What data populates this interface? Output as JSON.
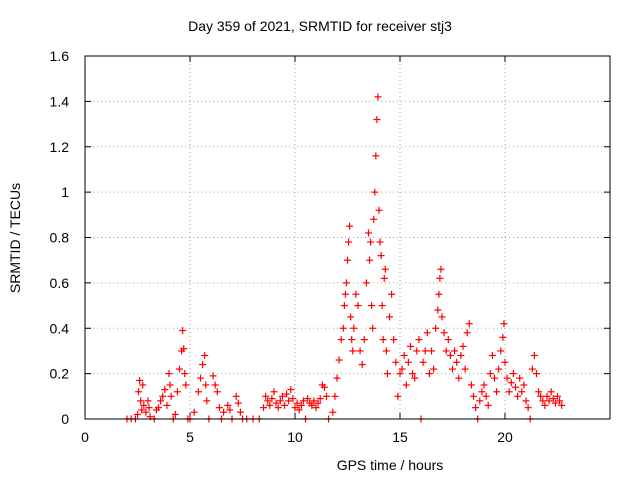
{
  "chart_data": {
    "type": "scatter",
    "title": "Day 359 of 2021, SRMTID for receiver stj3",
    "xlabel": "GPS time / hours",
    "ylabel": "SRMTID / TECUs",
    "xlim": [
      0,
      25
    ],
    "ylim": [
      0,
      1.6
    ],
    "xticks": [
      "0",
      "5",
      "10",
      "15",
      "20"
    ],
    "xtick_values": [
      0,
      5,
      10,
      15,
      20
    ],
    "yticks": [
      "0",
      "0.2",
      "0.4",
      "0.6",
      "0.8",
      "1",
      "1.2",
      "1.4",
      "1.6"
    ],
    "ytick_values": [
      0,
      0.2,
      0.4,
      0.6,
      0.8,
      1.0,
      1.2,
      1.4,
      1.6
    ],
    "grid": true,
    "marker": "+",
    "series_color": "#ff0000",
    "series": [
      {
        "name": "SRMTID",
        "points": [
          [
            2.0,
            0.0
          ],
          [
            2.2,
            0.0
          ],
          [
            2.4,
            0.0
          ],
          [
            2.5,
            0.02
          ],
          [
            2.55,
            0.12
          ],
          [
            2.6,
            0.17
          ],
          [
            2.65,
            0.08
          ],
          [
            2.7,
            0.04
          ],
          [
            2.75,
            0.15
          ],
          [
            2.8,
            0.06
          ],
          [
            2.9,
            0.03
          ],
          [
            3.0,
            0.08
          ],
          [
            3.05,
            0.05
          ],
          [
            3.1,
            0.01
          ],
          [
            3.3,
            0.0
          ],
          [
            3.4,
            0.04
          ],
          [
            3.5,
            0.05
          ],
          [
            3.6,
            0.08
          ],
          [
            3.7,
            0.1
          ],
          [
            3.8,
            0.13
          ],
          [
            3.9,
            0.06
          ],
          [
            4.0,
            0.2
          ],
          [
            4.05,
            0.15
          ],
          [
            4.1,
            0.1
          ],
          [
            4.2,
            0.0
          ],
          [
            4.3,
            0.02
          ],
          [
            4.4,
            0.12
          ],
          [
            4.5,
            0.22
          ],
          [
            4.6,
            0.3
          ],
          [
            4.65,
            0.39
          ],
          [
            4.7,
            0.31
          ],
          [
            4.75,
            0.2
          ],
          [
            4.8,
            0.15
          ],
          [
            4.9,
            0.0
          ],
          [
            5.0,
            0.0
          ],
          [
            5.2,
            0.03
          ],
          [
            5.4,
            0.12
          ],
          [
            5.5,
            0.18
          ],
          [
            5.6,
            0.24
          ],
          [
            5.7,
            0.28
          ],
          [
            5.75,
            0.15
          ],
          [
            5.8,
            0.08
          ],
          [
            5.9,
            0.0
          ],
          [
            6.1,
            0.19
          ],
          [
            6.2,
            0.15
          ],
          [
            6.3,
            0.12
          ],
          [
            6.4,
            0.05
          ],
          [
            6.5,
            0.0
          ],
          [
            6.6,
            0.03
          ],
          [
            6.8,
            0.06
          ],
          [
            6.9,
            0.04
          ],
          [
            7.0,
            0.0
          ],
          [
            7.2,
            0.1
          ],
          [
            7.3,
            0.07
          ],
          [
            7.4,
            0.03
          ],
          [
            7.5,
            0.0
          ],
          [
            7.7,
            0.0
          ],
          [
            8.0,
            0.0
          ],
          [
            8.3,
            0.0
          ],
          [
            8.5,
            0.05
          ],
          [
            8.6,
            0.1
          ],
          [
            8.7,
            0.08
          ],
          [
            8.8,
            0.06
          ],
          [
            8.9,
            0.09
          ],
          [
            9.0,
            0.12
          ],
          [
            9.1,
            0.07
          ],
          [
            9.2,
            0.05
          ],
          [
            9.3,
            0.08
          ],
          [
            9.4,
            0.1
          ],
          [
            9.5,
            0.06
          ],
          [
            9.6,
            0.11
          ],
          [
            9.7,
            0.08
          ],
          [
            9.8,
            0.13
          ],
          [
            9.9,
            0.09
          ],
          [
            10.0,
            0.05
          ],
          [
            10.1,
            0.07
          ],
          [
            10.2,
            0.04
          ],
          [
            10.3,
            0.06
          ],
          [
            10.4,
            0.08
          ],
          [
            10.5,
            0.0
          ],
          [
            10.6,
            0.09
          ],
          [
            10.7,
            0.07
          ],
          [
            10.8,
            0.06
          ],
          [
            10.9,
            0.08
          ],
          [
            11.0,
            0.05
          ],
          [
            11.1,
            0.07
          ],
          [
            11.2,
            0.09
          ],
          [
            11.3,
            0.15
          ],
          [
            11.4,
            0.14
          ],
          [
            11.5,
            0.1
          ],
          [
            11.6,
            0.0
          ],
          [
            11.8,
            0.03
          ],
          [
            11.9,
            0.1
          ],
          [
            12.0,
            0.18
          ],
          [
            12.1,
            0.26
          ],
          [
            12.2,
            0.35
          ],
          [
            12.3,
            0.4
          ],
          [
            12.35,
            0.5
          ],
          [
            12.4,
            0.55
          ],
          [
            12.45,
            0.6
          ],
          [
            12.5,
            0.7
          ],
          [
            12.55,
            0.78
          ],
          [
            12.6,
            0.85
          ],
          [
            12.65,
            0.45
          ],
          [
            12.7,
            0.35
          ],
          [
            12.75,
            0.3
          ],
          [
            12.8,
            0.4
          ],
          [
            12.9,
            0.55
          ],
          [
            13.0,
            0.5
          ],
          [
            13.1,
            0.3
          ],
          [
            13.2,
            0.24
          ],
          [
            13.3,
            0.35
          ],
          [
            13.4,
            0.6
          ],
          [
            13.5,
            0.82
          ],
          [
            13.55,
            0.7
          ],
          [
            13.6,
            0.78
          ],
          [
            13.65,
            0.5
          ],
          [
            13.7,
            0.4
          ],
          [
            13.75,
            0.88
          ],
          [
            13.8,
            1.0
          ],
          [
            13.85,
            1.16
          ],
          [
            13.9,
            1.32
          ],
          [
            13.95,
            1.42
          ],
          [
            14.0,
            0.92
          ],
          [
            14.05,
            0.78
          ],
          [
            14.1,
            0.72
          ],
          [
            14.15,
            0.5
          ],
          [
            14.2,
            0.35
          ],
          [
            14.25,
            0.62
          ],
          [
            14.3,
            0.66
          ],
          [
            14.35,
            0.3
          ],
          [
            14.4,
            0.2
          ],
          [
            14.5,
            0.45
          ],
          [
            14.6,
            0.55
          ],
          [
            14.7,
            0.35
          ],
          [
            14.8,
            0.25
          ],
          [
            14.9,
            0.1
          ],
          [
            15.0,
            0.2
          ],
          [
            15.1,
            0.22
          ],
          [
            15.2,
            0.28
          ],
          [
            15.3,
            0.15
          ],
          [
            15.4,
            0.25
          ],
          [
            15.5,
            0.32
          ],
          [
            15.6,
            0.2
          ],
          [
            15.7,
            0.18
          ],
          [
            15.8,
            0.3
          ],
          [
            15.9,
            0.35
          ],
          [
            16.0,
            0.0
          ],
          [
            16.1,
            0.25
          ],
          [
            16.2,
            0.3
          ],
          [
            16.3,
            0.38
          ],
          [
            16.4,
            0.2
          ],
          [
            16.5,
            0.3
          ],
          [
            16.6,
            0.22
          ],
          [
            16.7,
            0.4
          ],
          [
            16.8,
            0.48
          ],
          [
            16.85,
            0.55
          ],
          [
            16.9,
            0.62
          ],
          [
            16.95,
            0.66
          ],
          [
            17.0,
            0.45
          ],
          [
            17.1,
            0.38
          ],
          [
            17.2,
            0.3
          ],
          [
            17.3,
            0.35
          ],
          [
            17.4,
            0.28
          ],
          [
            17.5,
            0.22
          ],
          [
            17.6,
            0.3
          ],
          [
            17.7,
            0.25
          ],
          [
            17.8,
            0.18
          ],
          [
            17.9,
            0.28
          ],
          [
            18.0,
            0.32
          ],
          [
            18.1,
            0.22
          ],
          [
            18.2,
            0.38
          ],
          [
            18.3,
            0.42
          ],
          [
            18.4,
            0.15
          ],
          [
            18.5,
            0.1
          ],
          [
            18.6,
            0.05
          ],
          [
            18.7,
            0.0
          ],
          [
            18.8,
            0.08
          ],
          [
            18.9,
            0.12
          ],
          [
            19.0,
            0.15
          ],
          [
            19.1,
            0.1
          ],
          [
            19.2,
            0.06
          ],
          [
            19.3,
            0.2
          ],
          [
            19.4,
            0.28
          ],
          [
            19.5,
            0.18
          ],
          [
            19.6,
            0.12
          ],
          [
            19.7,
            0.22
          ],
          [
            19.8,
            0.3
          ],
          [
            19.9,
            0.36
          ],
          [
            19.95,
            0.42
          ],
          [
            20.0,
            0.25
          ],
          [
            20.1,
            0.18
          ],
          [
            20.2,
            0.12
          ],
          [
            20.3,
            0.16
          ],
          [
            20.4,
            0.2
          ],
          [
            20.5,
            0.14
          ],
          [
            20.6,
            0.1
          ],
          [
            20.7,
            0.18
          ],
          [
            20.8,
            0.12
          ],
          [
            20.9,
            0.15
          ],
          [
            21.0,
            0.08
          ],
          [
            21.1,
            0.05
          ],
          [
            21.2,
            0.0
          ],
          [
            21.3,
            0.22
          ],
          [
            21.4,
            0.28
          ],
          [
            21.5,
            0.2
          ],
          [
            21.6,
            0.12
          ],
          [
            21.7,
            0.1
          ],
          [
            21.8,
            0.08
          ],
          [
            21.9,
            0.06
          ],
          [
            22.0,
            0.1
          ],
          [
            22.1,
            0.08
          ],
          [
            22.2,
            0.12
          ],
          [
            22.3,
            0.09
          ],
          [
            22.4,
            0.07
          ],
          [
            22.5,
            0.1
          ],
          [
            22.6,
            0.08
          ],
          [
            22.7,
            0.06
          ]
        ]
      }
    ]
  }
}
